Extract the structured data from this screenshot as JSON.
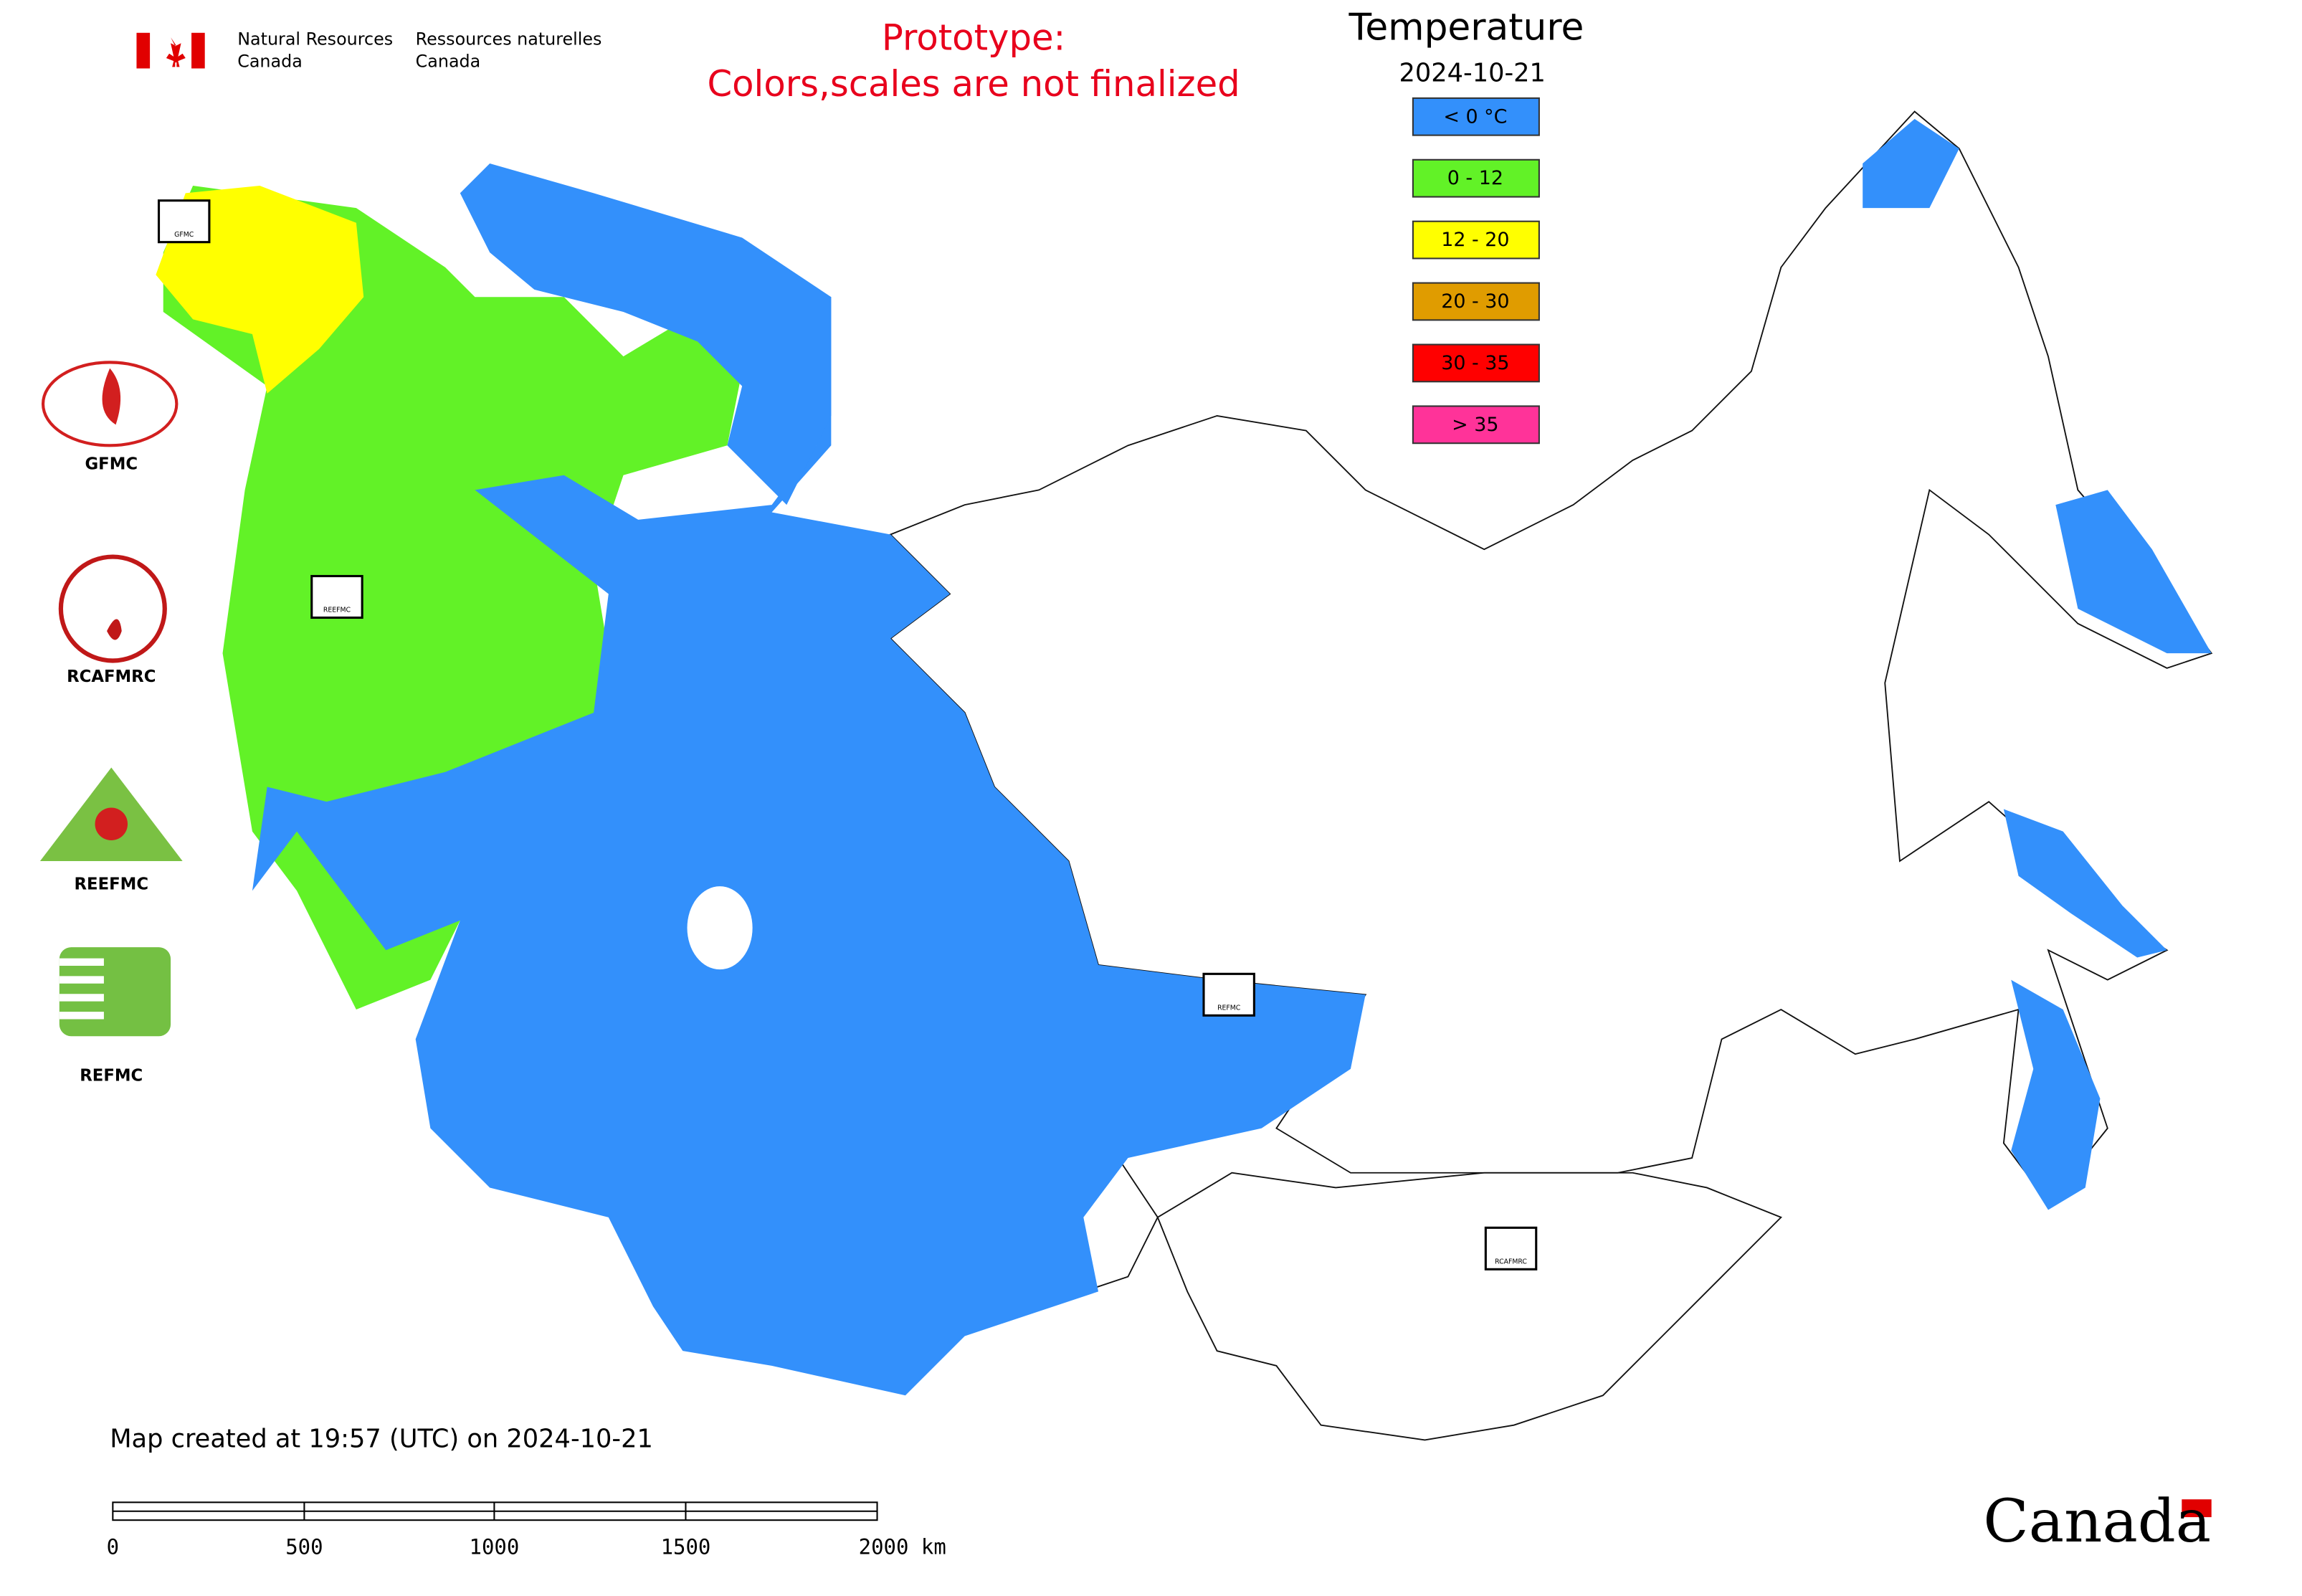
{
  "agency": {
    "en": [
      "Natural Resources",
      "Canada"
    ],
    "fr": [
      "Ressources naturelles",
      "Canada"
    ]
  },
  "notice": [
    "Prototype:",
    "Colors,scales are not finalized"
  ],
  "legend": {
    "title": "Temperature",
    "date": "2024-10-21",
    "items": [
      {
        "label": "< 0 °C",
        "color": "#3390fb"
      },
      {
        "label": "0 - 12",
        "color": "#62f227"
      },
      {
        "label": "12 - 20",
        "color": "#ffff00"
      },
      {
        "label": "20 - 30",
        "color": "#e09c00"
      },
      {
        "label": "30 - 35",
        "color": "#ff0000"
      },
      {
        "label": "> 35",
        "color": "#ff3399"
      }
    ]
  },
  "logos": [
    "GFMC",
    "RCAFMRC",
    "REEFMC",
    "REFMC"
  ],
  "map_markers": [
    "GFMC",
    "REEFMC",
    "REFMC",
    "RCAFMRC"
  ],
  "footer": "Map created at 19:57 (UTC) on 2024-10-21",
  "scale_bar": [
    "0",
    "500",
    "1000",
    "1500",
    "2000 km"
  ],
  "wordmark": "Canada"
}
